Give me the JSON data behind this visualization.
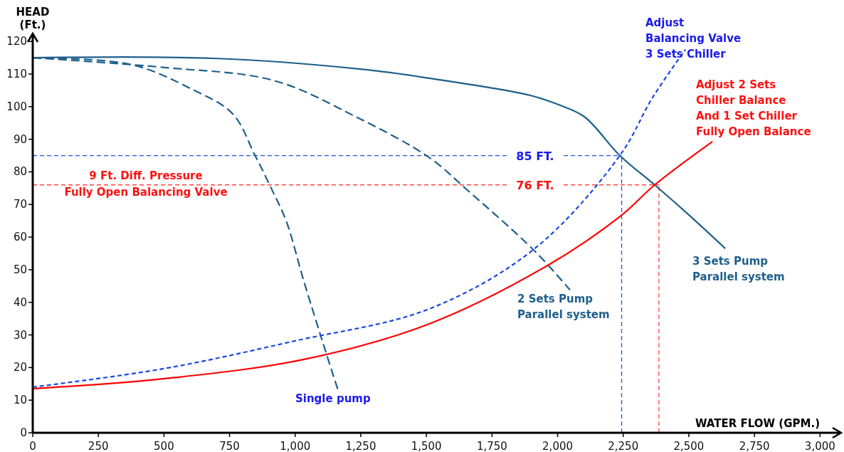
{
  "chart_data": {
    "type": "line",
    "xlabel": "WATER FLOW (GPM.)",
    "ylabel": "HEAD\n(Ft.)",
    "xlim": [
      0,
      3075
    ],
    "ylim": [
      0,
      122
    ],
    "xticks": [
      0,
      250,
      500,
      750,
      {
        "value": 1000,
        "label": "1,000"
      },
      {
        "value": 1250,
        "label": "1,250"
      },
      {
        "value": 1500,
        "label": "1,500"
      },
      {
        "value": 1750,
        "label": "1,750"
      },
      {
        "value": 2000,
        "label": "2,000"
      },
      {
        "value": 2250,
        "label": "2,250"
      },
      {
        "value": 2500,
        "label": "2,500"
      },
      {
        "value": 2750,
        "label": "2,750"
      },
      {
        "value": 3000,
        "label": "3,000"
      }
    ],
    "yticks": [
      0,
      10,
      20,
      30,
      40,
      50,
      60,
      70,
      80,
      90,
      100,
      110,
      120
    ],
    "grid": false,
    "series": [
      {
        "name": "Single pump",
        "color": "#1f5f8b",
        "line_style": "dashed",
        "x": [
          0,
          376,
          605,
          762,
          846,
          908,
          966,
          1033,
          1117,
          1164
        ],
        "values": [
          115,
          112.9,
          105.4,
          97.8,
          85.2,
          75.1,
          64.9,
          46.5,
          24.7,
          12.9
        ]
      },
      {
        "name": "2 Sets Pump\nParallel system",
        "color": "#1f5f8b",
        "line_style": "dashed",
        "x": [
          0,
          502,
          919,
          1231,
          1511,
          1652,
          1913,
          2047
        ],
        "values": [
          115,
          112,
          108,
          96.9,
          84.4,
          74.7,
          55.7,
          43.8
        ]
      },
      {
        "name": "3 Sets Pump\nParallel system",
        "color": "#1f5f8b",
        "line_style": "solid",
        "x": [
          0,
          689,
          1250,
          1511,
          1893,
          2000,
          2102,
          2237,
          2370,
          2500,
          2639
        ],
        "values": [
          115,
          114.8,
          111.5,
          108.7,
          103.5,
          100.7,
          96.9,
          85,
          76,
          66.8,
          56.5
        ]
      },
      {
        "name": "Adjust\nBalancing Valve\n3 Sets Chiller",
        "color": "#1a47e0",
        "line_style": "dashed",
        "x": [
          0,
          502,
          1001,
          1511,
          1913,
          2237,
          2362,
          2487
        ],
        "values": [
          14,
          19.7,
          28.2,
          38,
          56.5,
          85,
          102.8,
          117.5
        ]
      },
      {
        "name": "Adjust 2 Sets\nChiller Balance\nAnd 1 Set Chiller\nFully Open Balance",
        "color": "#ff0000",
        "line_style": "solid",
        "x": [
          0,
          502,
          1033,
          1511,
          1966,
          2242,
          2370,
          2590
        ],
        "values": [
          13.5,
          16.6,
          22.5,
          33.4,
          51.5,
          66.6,
          76,
          89.3
        ]
      }
    ],
    "ref_lines": [
      {
        "axis": "y",
        "value": 85,
        "label": "85 FT.",
        "color": "#2255dd",
        "line_style": "dashed"
      },
      {
        "axis": "y",
        "value": 76,
        "label": "76 FT.",
        "color": "#ff4444",
        "line_style": "dashed"
      },
      {
        "axis": "x",
        "value": 2244,
        "color": "#2255dd",
        "line_style": "dashed"
      },
      {
        "axis": "x",
        "value": 2386,
        "color": "#ff4444",
        "line_style": "dashed"
      }
    ],
    "annotations": [
      "9 Ft. Diff. Pressure\nFully Open Balancing Valve"
    ]
  }
}
